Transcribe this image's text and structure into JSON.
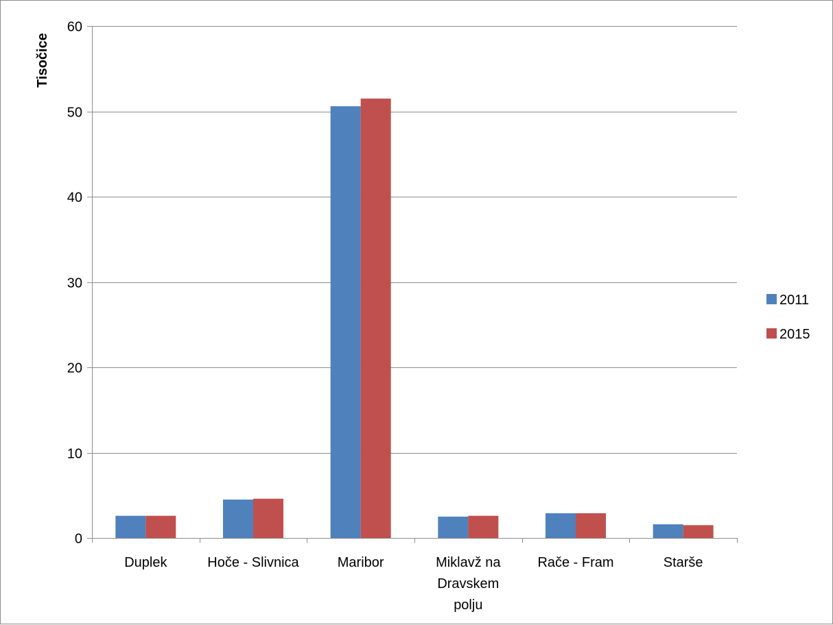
{
  "chart_data": {
    "type": "bar",
    "title": "",
    "xlabel": "",
    "ylabel": "Tisočice",
    "ylim": [
      0,
      60
    ],
    "yticks": [
      0,
      10,
      20,
      30,
      40,
      50,
      60
    ],
    "grid": true,
    "legend_position": "right",
    "categories": [
      [
        "Duplek"
      ],
      [
        "Hoče - Slivnica"
      ],
      [
        "Maribor"
      ],
      [
        "Miklavž na",
        "Dravskem",
        "polju"
      ],
      [
        "Rače - Fram"
      ],
      [
        "Starše"
      ]
    ],
    "series": [
      {
        "name": "2011",
        "color": "#4f81bd",
        "values": [
          2.6,
          4.5,
          50.6,
          2.5,
          2.9,
          1.6
        ]
      },
      {
        "name": "2015",
        "color": "#c0504d",
        "values": [
          2.6,
          4.6,
          51.5,
          2.6,
          2.9,
          1.5
        ]
      }
    ]
  }
}
